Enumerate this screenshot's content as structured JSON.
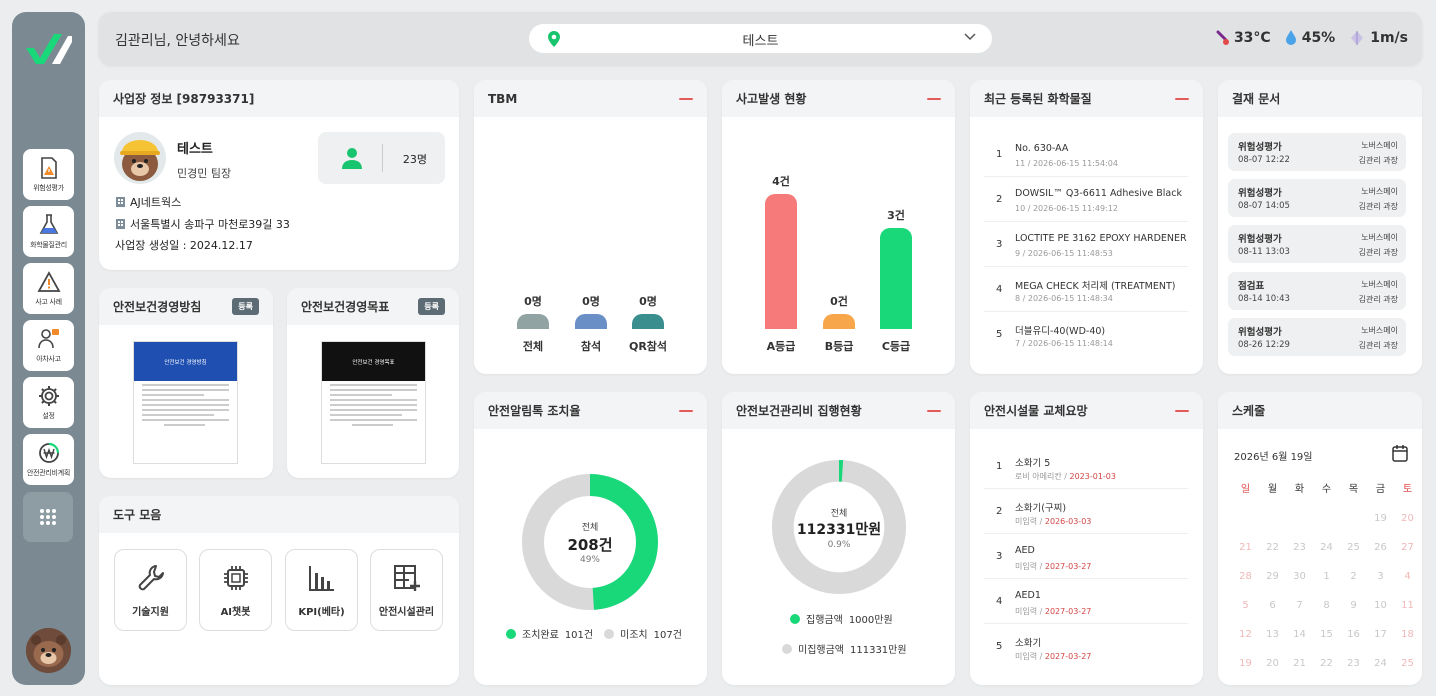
{
  "header": {
    "greeting": "김관리님, 안녕하세요",
    "site": "테스트",
    "weather": {
      "temp": "33°C",
      "humidity": "45%",
      "wind": "1m/s"
    }
  },
  "sidebar": {
    "items": [
      {
        "label": "위험성평가",
        "icon": "risk-doc-icon"
      },
      {
        "label": "화학물질관리",
        "icon": "flask-icon"
      },
      {
        "label": "사고 사례",
        "icon": "warning-icon"
      },
      {
        "label": "아차사고",
        "icon": "near-miss-icon"
      },
      {
        "label": "설정",
        "icon": "gear-icon"
      },
      {
        "label": "안전관리비계획",
        "icon": "won-icon"
      }
    ]
  },
  "site_info": {
    "title": "사업장 정보 [98793371]",
    "name": "테스트",
    "manager": "민경민 팀장",
    "workers": "23명",
    "company": "AJ네트웍스",
    "address": "서울특별시 송파구 마천로39길 33",
    "created": "사업장 생성일 : 2024.12.17"
  },
  "policy": {
    "title": "안전보건경영방침",
    "badge": "등록",
    "poster_title": "안전보건 경영방침"
  },
  "goal": {
    "title": "안전보건경영목표",
    "badge": "등록",
    "poster_title": "안전보건 경영목표"
  },
  "tools": {
    "title": "도구 모음",
    "items": [
      "기술지원",
      "AI챗봇",
      "KPI(베타)",
      "안전시설관리"
    ]
  },
  "tbm": {
    "title": "TBM",
    "bars": [
      {
        "value": "0명",
        "label": "전체",
        "color": "#92a3a4"
      },
      {
        "value": "0명",
        "label": "참석",
        "color": "#6a8fc6"
      },
      {
        "value": "0명",
        "label": "QR참석",
        "color": "#3a8e8e"
      }
    ]
  },
  "accident": {
    "title": "사고발생 현황",
    "bars": [
      {
        "value": "4건",
        "label": "A등급",
        "count": 4,
        "color": "#f77a7a"
      },
      {
        "value": "0건",
        "label": "B등급",
        "count": 0,
        "color": "#f7a64a"
      },
      {
        "value": "3건",
        "label": "C등급",
        "count": 3,
        "color": "#19d87a"
      }
    ]
  },
  "chemicals": {
    "title": "최근 등록된 화학물질",
    "items": [
      {
        "num": "1",
        "name": "No. 630-AA",
        "sub": "11 / 2026-06-15 11:54:04"
      },
      {
        "num": "2",
        "name": "DOWSIL™ Q3-6611 Adhesive Black",
        "sub": "10 / 2026-06-15 11:49:12"
      },
      {
        "num": "3",
        "name": "LOCTITE PE 3162 EPOXY HARDENER",
        "sub": "9 / 2026-06-15 11:48:53"
      },
      {
        "num": "4",
        "name": "MEGA CHECK 처리제 (TREATMENT)",
        "sub": "8 / 2026-06-15 11:48:34"
      },
      {
        "num": "5",
        "name": "더블유디-40(WD-40)",
        "sub": "7 / 2026-06-15 11:48:14"
      }
    ]
  },
  "approvals": {
    "title": "결재 문서",
    "items": [
      {
        "title": "위험성평가",
        "date": "08-07 12:22",
        "org": "노버스메이",
        "person": "김관리 과장"
      },
      {
        "title": "위험성평가",
        "date": "08-07 14:05",
        "org": "노버스메이",
        "person": "김관리 과장"
      },
      {
        "title": "위험성평가",
        "date": "08-11 13:03",
        "org": "노버스메이",
        "person": "김관리 과장"
      },
      {
        "title": "점검표",
        "date": "08-14 10:43",
        "org": "노버스메이",
        "person": "김관리 과장"
      },
      {
        "title": "위험성평가",
        "date": "08-26 12:29",
        "org": "노버스메이",
        "person": "김관리 과장"
      }
    ]
  },
  "alarm": {
    "title": "안전알림톡 조치율",
    "center_label": "전체",
    "total": "208건",
    "percent": "49%",
    "ratio": 0.49,
    "legend": [
      {
        "label": "조치완료",
        "value": "101건",
        "color": "#19d87a"
      },
      {
        "label": "미조치",
        "value": "107건",
        "color": "#d9d9d9"
      }
    ]
  },
  "budget": {
    "title": "안전보건관리비 집행현황",
    "center_label": "전체",
    "total": "112331만원",
    "percent": "0.9%",
    "ratio": 0.009,
    "legend": [
      {
        "label": "집행금액",
        "value": "1000만원",
        "color": "#19d87a"
      },
      {
        "label": "미집행금액",
        "value": "111331만원",
        "color": "#d9d9d9"
      }
    ]
  },
  "facility": {
    "title": "안전시설물 교체요망",
    "items": [
      {
        "num": "1",
        "name": "소화기 5",
        "loc": "로비 아메리칸",
        "date": "2023-01-03"
      },
      {
        "num": "2",
        "name": "소화기(구찌)",
        "loc": "미입력",
        "date": "2026-03-03"
      },
      {
        "num": "3",
        "name": "AED",
        "loc": "미입력",
        "date": "2027-03-27"
      },
      {
        "num": "4",
        "name": "AED1",
        "loc": "미입력",
        "date": "2027-03-27"
      },
      {
        "num": "5",
        "name": "소화기",
        "loc": "미입력",
        "date": "2027-03-27"
      }
    ]
  },
  "schedule": {
    "title": "스케줄",
    "month": "2026년 6월 19일",
    "weekdays": [
      "일",
      "월",
      "화",
      "수",
      "목",
      "금",
      "토"
    ],
    "weeks": [
      [
        "",
        "",
        "",
        "",
        "",
        "19",
        "20"
      ],
      [
        "21",
        "22",
        "23",
        "24",
        "25",
        "26",
        "27"
      ],
      [
        "28",
        "29",
        "30",
        "1",
        "2",
        "3",
        "4"
      ],
      [
        "5",
        "6",
        "7",
        "8",
        "9",
        "10",
        "11"
      ],
      [
        "12",
        "13",
        "14",
        "15",
        "16",
        "17",
        "18"
      ],
      [
        "19",
        "20",
        "21",
        "22",
        "23",
        "24",
        "25"
      ]
    ]
  }
}
